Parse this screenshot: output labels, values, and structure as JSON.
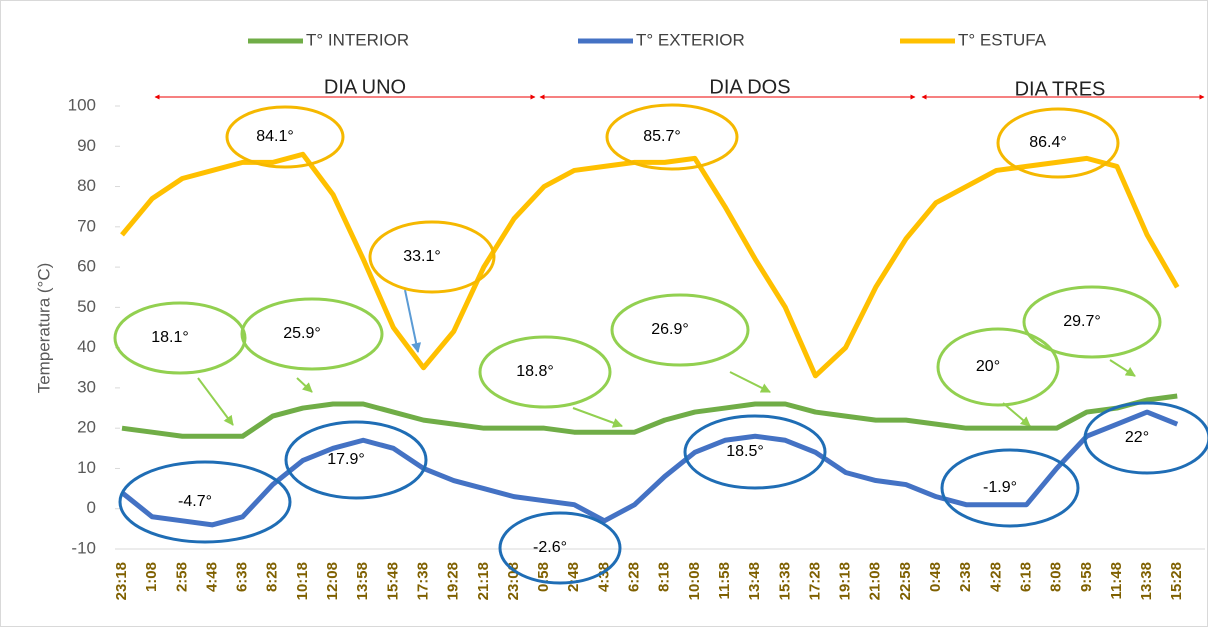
{
  "chart_data": {
    "type": "line",
    "y_label": "Temperatura (°C)",
    "categories": [
      "23:18",
      "1:08",
      "2:58",
      "4:48",
      "6:38",
      "8:28",
      "10:18",
      "12:08",
      "13:58",
      "15:48",
      "17:38",
      "19:28",
      "21:18",
      "23:08",
      "0:58",
      "2:48",
      "4:38",
      "6:28",
      "8:18",
      "10:08",
      "11:58",
      "13:48",
      "15:38",
      "17:28",
      "19:18",
      "21:08",
      "22:58",
      "0:48",
      "2:38",
      "4:28",
      "6:18",
      "8:08",
      "9:58",
      "11:48",
      "13:38",
      "15:28"
    ],
    "series": [
      {
        "name": "T° INTERIOR",
        "color": "#70ad47",
        "values": [
          20,
          19,
          18,
          18,
          18,
          23,
          25,
          26,
          26,
          24,
          22,
          21,
          20,
          20,
          20,
          19,
          19,
          19,
          22,
          24,
          25,
          26,
          26,
          24,
          23,
          22,
          22,
          21,
          20,
          20,
          20,
          20,
          24,
          25,
          27,
          28
        ]
      },
      {
        "name": "T° EXTERIOR",
        "color": "#4472c4",
        "values": [
          4,
          -2,
          -3,
          -4,
          -2,
          6,
          12,
          15,
          17,
          15,
          10,
          7,
          5,
          3,
          2,
          1,
          -3,
          1,
          8,
          14,
          17,
          18,
          17,
          14,
          9,
          7,
          6,
          3,
          1,
          1,
          1,
          10,
          18,
          21,
          24,
          21
        ]
      },
      {
        "name": "T° ESTUFA",
        "color": "#ffc000",
        "values": [
          68,
          77,
          82,
          84,
          86,
          86,
          88,
          78,
          62,
          45,
          35,
          44,
          60,
          72,
          80,
          84,
          85,
          86,
          86,
          87,
          75,
          62,
          50,
          33,
          40,
          55,
          67,
          76,
          80,
          84,
          85,
          86,
          87,
          85,
          68,
          55
        ]
      }
    ],
    "ylim": [
      -10,
      100
    ],
    "yticks": [
      -10,
      0,
      10,
      20,
      30,
      40,
      50,
      60,
      70,
      80,
      90,
      100
    ],
    "periods": [
      "DIA UNO",
      "DIA DOS",
      "DIA TRES"
    ],
    "annotations": [
      {
        "text": "84.1°",
        "color": "#f5b800"
      },
      {
        "text": "33.1°",
        "color": "#f5b800"
      },
      {
        "text": "85.7°",
        "color": "#f5b800"
      },
      {
        "text": "86.4°",
        "color": "#f5b800"
      },
      {
        "text": "18.1°",
        "color": "#92d050"
      },
      {
        "text": "25.9°",
        "color": "#92d050"
      },
      {
        "text": "18.8°",
        "color": "#92d050"
      },
      {
        "text": "26.9°",
        "color": "#92d050"
      },
      {
        "text": "20°",
        "color": "#92d050"
      },
      {
        "text": "29.7°",
        "color": "#92d050"
      },
      {
        "text": "-4.7°",
        "color": "#1f6db5"
      },
      {
        "text": "17.9°",
        "color": "#1f6db5"
      },
      {
        "text": "-2.6°",
        "color": "#1f6db5"
      },
      {
        "text": "18.5°",
        "color": "#1f6db5"
      },
      {
        "text": "-1.9°",
        "color": "#1f6db5"
      },
      {
        "text": "22°",
        "color": "#1f6db5"
      }
    ]
  }
}
